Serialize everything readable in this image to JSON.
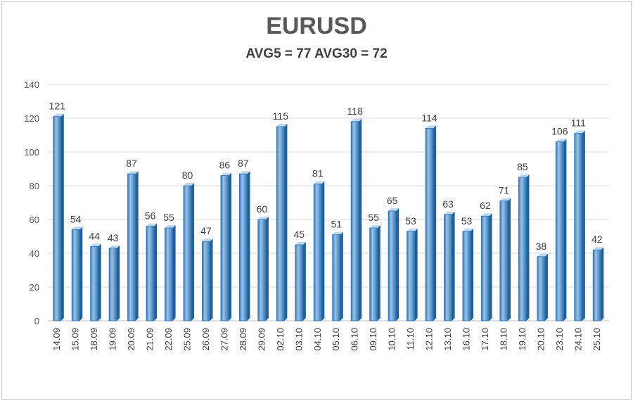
{
  "chart_data": {
    "type": "bar",
    "title": "EURUSD",
    "subtitle": "AVG5 = 77 AVG30 = 72",
    "categories": [
      "14.09",
      "15.09",
      "18.09",
      "19.09",
      "20.09",
      "21.09",
      "22.09",
      "25.09",
      "26.09",
      "27.09",
      "28.09",
      "29.09",
      "02.10",
      "03.10",
      "04.10",
      "05.10",
      "06.10",
      "09.10",
      "10.10",
      "11.10",
      "12.10",
      "13.10",
      "16.10",
      "17.10",
      "18.10",
      "19.10",
      "20.10",
      "23.10",
      "24.10",
      "25.10"
    ],
    "values": [
      121,
      54,
      44,
      43,
      87,
      56,
      55,
      80,
      47,
      86,
      87,
      60,
      115,
      45,
      81,
      51,
      118,
      55,
      65,
      53,
      114,
      63,
      53,
      62,
      71,
      85,
      38,
      106,
      111,
      42
    ],
    "ylim": [
      0,
      140
    ],
    "yticks": [
      0,
      20,
      40,
      60,
      80,
      100,
      120,
      140
    ],
    "grid": true,
    "legend": "none",
    "colors": {
      "bar": "#5b9bd5",
      "bar_dark": "#2e75b6",
      "bar_light": "#9dc3e6",
      "grid": "#d9d9d9"
    }
  }
}
